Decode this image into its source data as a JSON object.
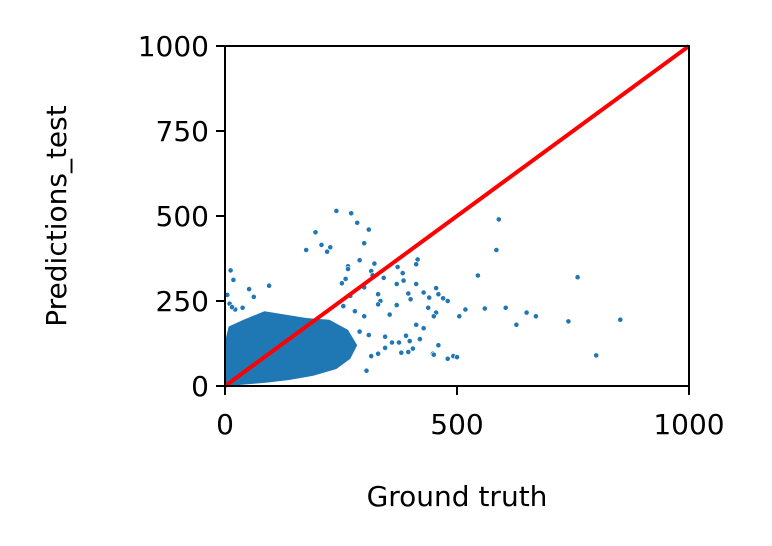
{
  "chart_data": {
    "type": "scatter",
    "xlabel": "Ground truth",
    "ylabel": "Predictions_test",
    "xlim": [
      0,
      1000
    ],
    "ylim": [
      0,
      1000
    ],
    "xticks": [
      "0",
      "500",
      "1000"
    ],
    "yticks": [
      "0",
      "250",
      "500",
      "750",
      "1000"
    ],
    "grid": false,
    "series": [
      {
        "marker_color": "#1f77b4",
        "points": [
          [
            240,
            515
          ],
          [
            272,
            508
          ],
          [
            590,
            490
          ],
          [
            195,
            452
          ],
          [
            285,
            480
          ],
          [
            310,
            460
          ],
          [
            300,
            420
          ],
          [
            208,
            415
          ],
          [
            227,
            408
          ],
          [
            220,
            395
          ],
          [
            175,
            400
          ],
          [
            585,
            400
          ],
          [
            415,
            372
          ],
          [
            412,
            358
          ],
          [
            290,
            370
          ],
          [
            322,
            360
          ],
          [
            265,
            352
          ],
          [
            265,
            344
          ],
          [
            315,
            338
          ],
          [
            372,
            350
          ],
          [
            383,
            332
          ],
          [
            545,
            325
          ],
          [
            318,
            326
          ],
          [
            760,
            320
          ],
          [
            342,
            318
          ],
          [
            385,
            310
          ],
          [
            370,
            300
          ],
          [
            412,
            300
          ],
          [
            455,
            288
          ],
          [
            428,
            275
          ],
          [
            460,
            270
          ],
          [
            395,
            272
          ],
          [
            440,
            260
          ],
          [
            470,
            258
          ],
          [
            480,
            250
          ],
          [
            400,
            255
          ],
          [
            518,
            225
          ],
          [
            560,
            228
          ],
          [
            605,
            230
          ],
          [
            650,
            216
          ],
          [
            670,
            205
          ],
          [
            740,
            190
          ],
          [
            852,
            195
          ],
          [
            628,
            180
          ],
          [
            800,
            90
          ],
          [
            438,
            230
          ],
          [
            455,
            216
          ],
          [
            450,
            205
          ],
          [
            505,
            205
          ],
          [
            412,
            180
          ],
          [
            428,
            170
          ],
          [
            390,
            148
          ],
          [
            420,
            138
          ],
          [
            460,
            120
          ],
          [
            405,
            110
          ],
          [
            395,
            100
          ],
          [
            448,
            95
          ],
          [
            492,
            88
          ],
          [
            450,
            92
          ],
          [
            500,
            85
          ],
          [
            480,
            80
          ],
          [
            345,
            112
          ],
          [
            360,
            128
          ],
          [
            330,
            95
          ],
          [
            380,
            98
          ],
          [
            315,
            88
          ],
          [
            305,
            45
          ],
          [
            375,
            128
          ],
          [
            398,
            132
          ],
          [
            345,
            145
          ],
          [
            290,
            160
          ],
          [
            310,
            150
          ],
          [
            270,
            120
          ],
          [
            250,
            110
          ],
          [
            260,
            140
          ],
          [
            240,
            155
          ],
          [
            300,
            205
          ],
          [
            280,
            220
          ],
          [
            255,
            235
          ],
          [
            270,
            265
          ],
          [
            330,
            270
          ],
          [
            335,
            250
          ],
          [
            330,
            240
          ],
          [
            370,
            238
          ],
          [
            355,
            210
          ],
          [
            260,
            315
          ],
          [
            252,
            302
          ],
          [
            300,
            290
          ],
          [
            12,
            340
          ],
          [
            18,
            312
          ],
          [
            5,
            268
          ],
          [
            10,
            242
          ],
          [
            22,
            225
          ],
          [
            15,
            232
          ],
          [
            52,
            285
          ],
          [
            62,
            262
          ],
          [
            38,
            230
          ],
          [
            95,
            295
          ]
        ]
      }
    ],
    "reference_line": {
      "from": [
        0,
        0
      ],
      "to": [
        1000,
        1000
      ],
      "color": "#ff0000"
    }
  }
}
